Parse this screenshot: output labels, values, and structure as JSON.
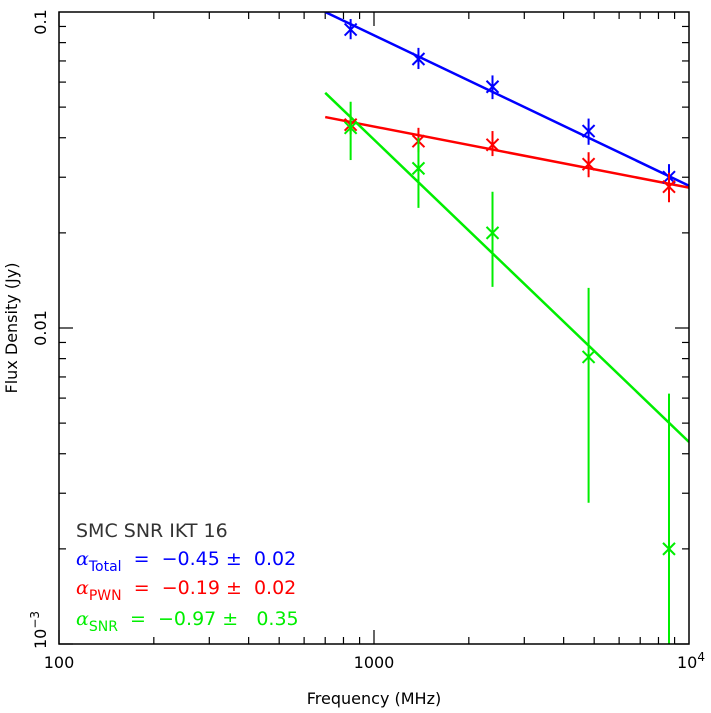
{
  "chart_data": {
    "type": "scatter",
    "xscale": "log",
    "yscale": "log",
    "xlabel": "Frequency (MHz)",
    "ylabel": "Flux Density (Jy)",
    "xlim": [
      100,
      10000
    ],
    "ylim": [
      0.001,
      0.1
    ],
    "x_tick_labels": [
      {
        "value": 100,
        "label": "100"
      },
      {
        "value": 1000,
        "label": "1000"
      },
      {
        "value": 10000,
        "label_base": "10",
        "label_exp": "4"
      }
    ],
    "y_tick_labels": [
      {
        "value": 0.1,
        "label": "0.1"
      },
      {
        "value": 0.01,
        "label": "0.01"
      },
      {
        "value": 0.001,
        "label_base": "10",
        "label_exp": "−3"
      }
    ],
    "title": "SMC SNR IKT 16",
    "series": [
      {
        "name": "Total",
        "color": "#0000ff",
        "x": [
          843,
          1384,
          2378,
          4800,
          8640
        ],
        "y": [
          0.088,
          0.071,
          0.058,
          0.042,
          0.03
        ],
        "yerr_low": [
          0.082,
          0.066,
          0.053,
          0.038,
          0.027
        ],
        "yerr_high": [
          0.095,
          0.077,
          0.063,
          0.046,
          0.033
        ],
        "fit_x": [
          700,
          10000
        ],
        "fit_y": [
          0.1,
          0.0282
        ],
        "alpha_label": "Total",
        "alpha_value": "−0.45 ±  0.02"
      },
      {
        "name": "PWN",
        "color": "#ff0000",
        "x": [
          843,
          1384,
          2378,
          4800,
          8640
        ],
        "y": [
          0.044,
          0.039,
          0.038,
          0.033,
          0.028
        ],
        "yerr_low": [
          0.041,
          0.036,
          0.035,
          0.03,
          0.025
        ],
        "yerr_high": [
          0.047,
          0.043,
          0.042,
          0.036,
          0.031
        ],
        "fit_x": [
          700,
          10000
        ],
        "fit_y": [
          0.0465,
          0.0278
        ],
        "alpha_label": "PWN",
        "alpha_value": "−0.19 ±  0.02"
      },
      {
        "name": "SNR",
        "color": "#00ee00",
        "x": [
          843,
          1384,
          2378,
          4800,
          8640
        ],
        "y": [
          0.043,
          0.032,
          0.02,
          0.0081,
          0.002
        ],
        "yerr_low": [
          0.034,
          0.024,
          0.0135,
          0.0028,
          0.001
        ],
        "yerr_high": [
          0.052,
          0.04,
          0.027,
          0.0134,
          0.0062
        ],
        "fit_x": [
          700,
          10000
        ],
        "fit_y": [
          0.0555,
          0.00436
        ],
        "alpha_label": "SNR",
        "alpha_value": "−0.97 ±   0.35"
      }
    ]
  }
}
